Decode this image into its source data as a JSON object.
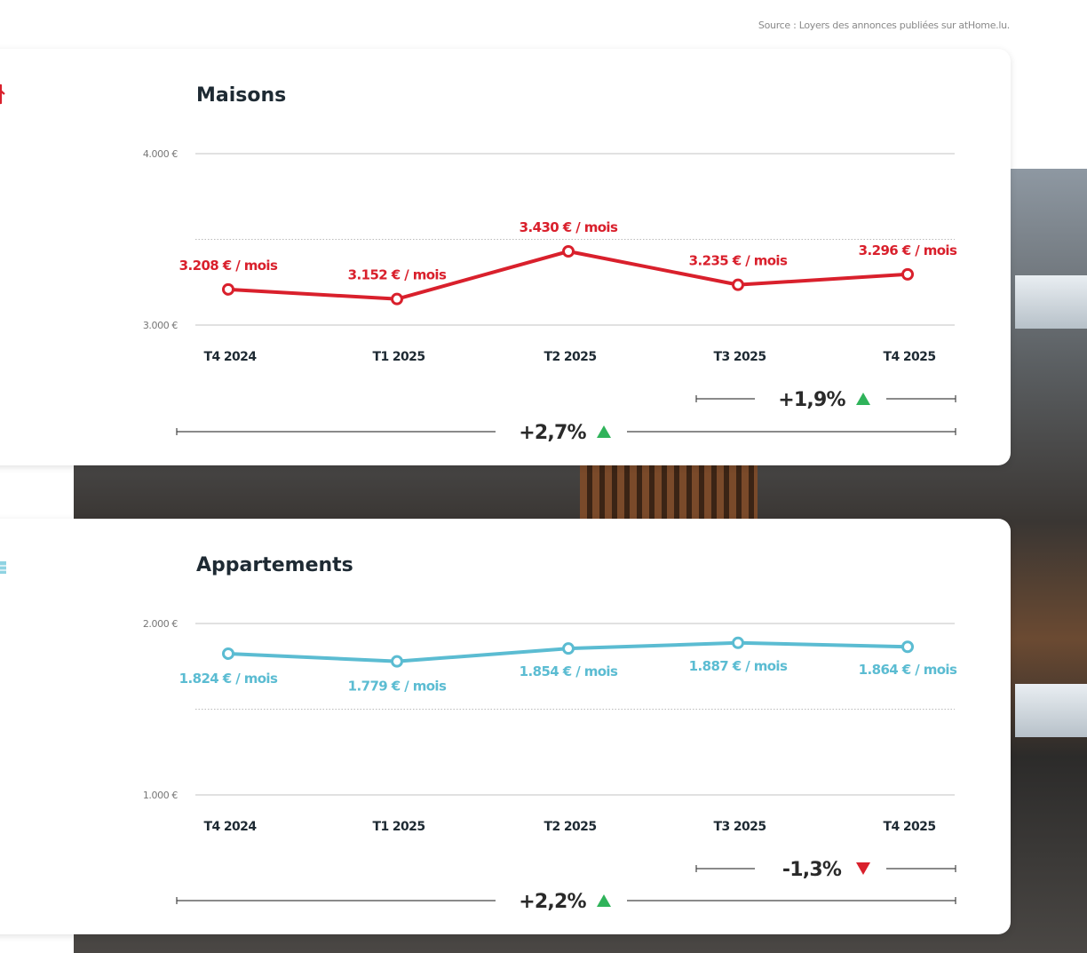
{
  "source": "Source : Loyers des annonces publiées sur atHome.lu.",
  "colors": {
    "maisons": "#d9202c",
    "appartements": "#5bbcd2",
    "up": "#2fb35a",
    "down": "#d9202c",
    "text": "#1e2a33"
  },
  "chart_data": [
    {
      "type": "line",
      "title": "Maisons",
      "icon": "house-icon",
      "categories": [
        "T4 2024",
        "T1 2025",
        "T2 2025",
        "T3 2025",
        "T4 2025"
      ],
      "values": [
        3208,
        3152,
        3430,
        3235,
        3296
      ],
      "data_labels": [
        "3.208 € / mois",
        "3.152 € / mois",
        "3.430 € / mois",
        "3.235 € / mois",
        "3.296 € / mois"
      ],
      "ylim": [
        3000,
        4000
      ],
      "yticks": [
        {
          "value": 4000,
          "label": "4.000 €"
        },
        {
          "value": 3000,
          "label": "3.000 €"
        }
      ],
      "midline": 3500,
      "changes": [
        {
          "label": "+1,9%",
          "direction": "up",
          "from": "T3 2025",
          "to": "T4 2025"
        },
        {
          "label": "+2,7%",
          "direction": "up",
          "from": "T4 2024",
          "to": "T4 2025"
        }
      ],
      "color": "#d9202c"
    },
    {
      "type": "line",
      "title": "Appartements",
      "icon": "apartment-buildings-icon",
      "categories": [
        "T4 2024",
        "T1 2025",
        "T2 2025",
        "T3 2025",
        "T4 2025"
      ],
      "values": [
        1824,
        1779,
        1854,
        1887,
        1864
      ],
      "data_labels": [
        "1.824 € / mois",
        "1.779 € / mois",
        "1.854 € / mois",
        "1.887 € / mois",
        "1.864 € / mois"
      ],
      "ylim": [
        1000,
        2000
      ],
      "yticks": [
        {
          "value": 2000,
          "label": "2.000 €"
        },
        {
          "value": 1000,
          "label": "1.000 €"
        }
      ],
      "midline": 1500,
      "changes": [
        {
          "label": "-1,3%",
          "direction": "down",
          "from": "T3 2025",
          "to": "T4 2025"
        },
        {
          "label": "+2,2%",
          "direction": "up",
          "from": "T4 2024",
          "to": "T4 2025"
        }
      ],
      "color": "#5bbcd2"
    }
  ]
}
